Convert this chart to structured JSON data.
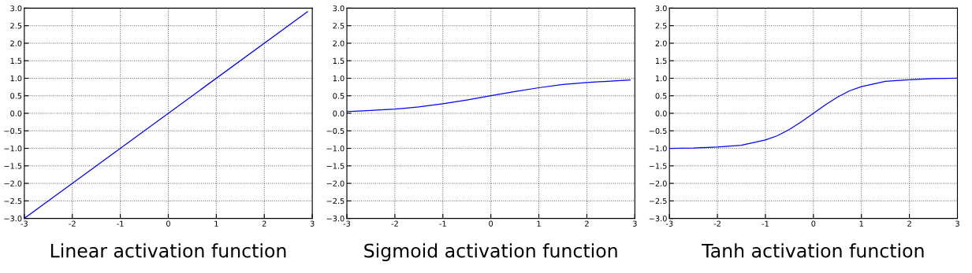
{
  "chart_data": [
    {
      "type": "line",
      "xlabel": "Linear activation function",
      "xlim": [
        -3,
        3
      ],
      "ylim": [
        -3,
        3
      ],
      "xticks": [
        -3,
        -2,
        -1,
        0,
        1,
        2,
        3
      ],
      "yticks": [
        {
          "value": -3,
          "label": "−3.0"
        },
        {
          "value": -2.5,
          "label": "−2.5"
        },
        {
          "value": -2,
          "label": "−2.0"
        },
        {
          "value": -1.5,
          "label": "−1.5"
        },
        {
          "value": -1,
          "label": "−1.0"
        },
        {
          "value": -0.5,
          "label": "−0.5"
        },
        {
          "value": 0,
          "label": "0.0"
        },
        {
          "value": 0.5,
          "label": "0.5"
        },
        {
          "value": 1,
          "label": "1.0"
        },
        {
          "value": 1.5,
          "label": "1.5"
        },
        {
          "value": 2,
          "label": "2.0"
        },
        {
          "value": 2.5,
          "label": "2.5"
        },
        {
          "value": 3,
          "label": "3.0"
        }
      ],
      "grid": true,
      "series": [
        {
          "color": "#0000ff",
          "x": [
            -3,
            2.9
          ],
          "values": [
            -3,
            2.9
          ]
        }
      ]
    },
    {
      "type": "line",
      "xlabel": "Sigmoid activation function",
      "xlim": [
        -3,
        3
      ],
      "ylim": [
        -3,
        3
      ],
      "xticks": [
        -3,
        -2,
        -1,
        0,
        1,
        2,
        3
      ],
      "yticks": [
        {
          "value": -3,
          "label": "−3.0"
        },
        {
          "value": -2.5,
          "label": "−2.5"
        },
        {
          "value": -2,
          "label": "−2.0"
        },
        {
          "value": -1.5,
          "label": "−1.5"
        },
        {
          "value": -1,
          "label": "−1.0"
        },
        {
          "value": -0.5,
          "label": "−0.5"
        },
        {
          "value": 0,
          "label": "0.0"
        },
        {
          "value": 0.5,
          "label": "0.5"
        },
        {
          "value": 1,
          "label": "1.0"
        },
        {
          "value": 1.5,
          "label": "1.5"
        },
        {
          "value": 2,
          "label": "2.0"
        },
        {
          "value": 2.5,
          "label": "2.5"
        },
        {
          "value": 3,
          "label": "3.0"
        }
      ],
      "grid": true,
      "series": [
        {
          "color": "#0000ff",
          "x": [
            -3,
            -2.5,
            -2,
            -1.5,
            -1,
            -0.5,
            0,
            0.5,
            1,
            1.5,
            2,
            2.5,
            2.9
          ],
          "values": [
            0.05,
            0.08,
            0.12,
            0.18,
            0.27,
            0.38,
            0.5,
            0.62,
            0.73,
            0.82,
            0.88,
            0.92,
            0.95
          ]
        }
      ]
    },
    {
      "type": "line",
      "xlabel": "Tanh activation function",
      "xlim": [
        -3,
        3
      ],
      "ylim": [
        -3,
        3
      ],
      "xticks": [
        -3,
        -2,
        -1,
        0,
        1,
        2,
        3
      ],
      "yticks": [
        {
          "value": -3,
          "label": "−3.0"
        },
        {
          "value": -2.5,
          "label": "−2.5"
        },
        {
          "value": -2,
          "label": "−2.0"
        },
        {
          "value": -1.5,
          "label": "−1.5"
        },
        {
          "value": -1,
          "label": "−1.0"
        },
        {
          "value": -0.5,
          "label": "−0.5"
        },
        {
          "value": 0,
          "label": "0.0"
        },
        {
          "value": 0.5,
          "label": "0.5"
        },
        {
          "value": 1,
          "label": "1.0"
        },
        {
          "value": 1.5,
          "label": "1.5"
        },
        {
          "value": 2,
          "label": "2.0"
        },
        {
          "value": 2.5,
          "label": "2.5"
        },
        {
          "value": 3,
          "label": "3.0"
        }
      ],
      "grid": true,
      "series": [
        {
          "color": "#0000ff",
          "x": [
            -3,
            -2.5,
            -2,
            -1.5,
            -1,
            -0.75,
            -0.5,
            -0.25,
            0,
            0.25,
            0.5,
            0.75,
            1,
            1.5,
            2,
            2.5,
            3
          ],
          "values": [
            -1.0,
            -0.99,
            -0.96,
            -0.91,
            -0.76,
            -0.64,
            -0.46,
            -0.24,
            0,
            0.24,
            0.46,
            0.64,
            0.76,
            0.91,
            0.96,
            0.99,
            1.0
          ]
        }
      ]
    }
  ]
}
